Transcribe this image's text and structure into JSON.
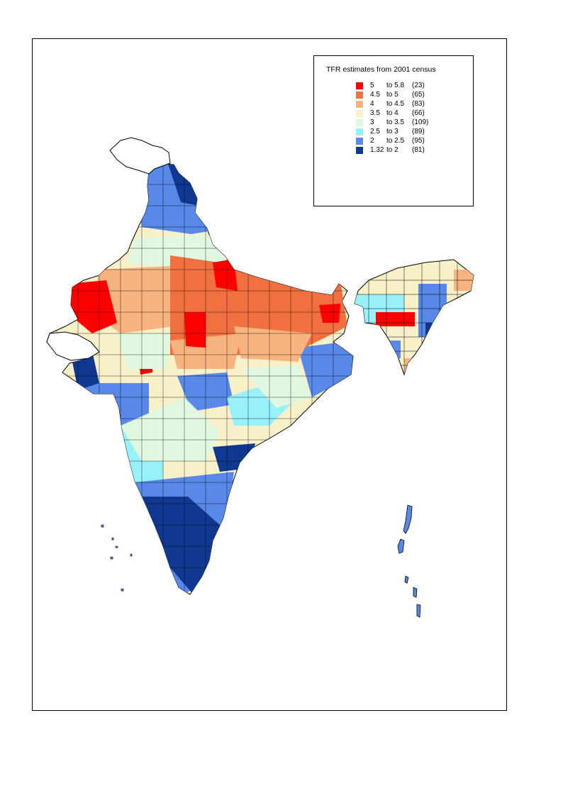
{
  "legend": {
    "title": "TFR estimates from 2001 census",
    "classes": [
      {
        "low": "5",
        "high": "to 5.8",
        "count": "(23)",
        "color": "#ff0000"
      },
      {
        "low": "4.5",
        "high": "to 5",
        "count": "(65)",
        "color": "#f07040"
      },
      {
        "low": "4",
        "high": "to 4.5",
        "count": "(83)",
        "color": "#f8b480"
      },
      {
        "low": "3.5",
        "high": "to 4",
        "count": "(66)",
        "color": "#f8f0c8"
      },
      {
        "low": "3",
        "high": "to 3.5",
        "count": "(109)",
        "color": "#e0f8e0"
      },
      {
        "low": "2.5",
        "high": "to 3",
        "count": "(89)",
        "color": "#98f0f8"
      },
      {
        "low": "2",
        "high": "to 2.5",
        "count": "(95)",
        "color": "#5888e8"
      },
      {
        "low": "1.32",
        "high": "to 2",
        "count": "(81)",
        "color": "#103890"
      }
    ]
  },
  "no_data_color": "#ffffff"
}
